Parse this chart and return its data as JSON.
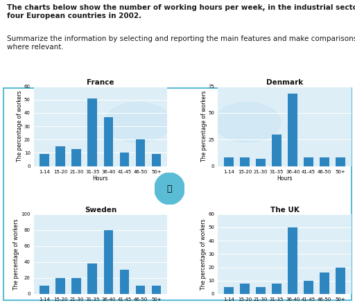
{
  "categories": [
    "1-14",
    "15-20",
    "21-30",
    "31-35",
    "36-40",
    "41-45",
    "46-50",
    "50+"
  ],
  "countries": [
    "France",
    "Denmark",
    "Sweden",
    "The UK"
  ],
  "data": {
    "France": [
      9,
      15,
      13,
      51,
      37,
      10,
      20,
      9
    ],
    "Denmark": [
      8,
      8,
      7,
      30,
      68,
      8,
      8,
      8
    ],
    "Sweden": [
      10,
      20,
      20,
      38,
      80,
      30,
      10,
      10
    ],
    "The UK": [
      5,
      8,
      5,
      8,
      50,
      10,
      16,
      20
    ]
  },
  "ylims": {
    "France": [
      0,
      60
    ],
    "Denmark": [
      0,
      75
    ],
    "Sweden": [
      0,
      100
    ],
    "The UK": [
      0,
      60
    ]
  },
  "yticks": {
    "France": [
      0,
      10,
      20,
      30,
      40,
      50,
      60
    ],
    "Denmark": [
      0,
      25,
      50,
      75
    ],
    "Sweden": [
      0,
      20,
      40,
      60,
      80,
      100
    ],
    "The UK": [
      0,
      10,
      20,
      30,
      40,
      50,
      60
    ]
  },
  "bar_color": "#2e86c1",
  "bg_color": "#ddeef6",
  "border_color": "#5bbcd6",
  "ylabel": "The percentage of workers",
  "xlabel": "Hours",
  "title_bold": "The charts below show the number of working hours per week, in the industrial sector, in\nfour European countries in 2002.",
  "title_normal": " Summarize the information by selecting and reporting the\nmain features and make comparisons where relevant.",
  "title_fontsize": 7.5,
  "axis_label_fontsize": 5.5,
  "tick_fontsize": 5,
  "country_fontsize": 7.5
}
